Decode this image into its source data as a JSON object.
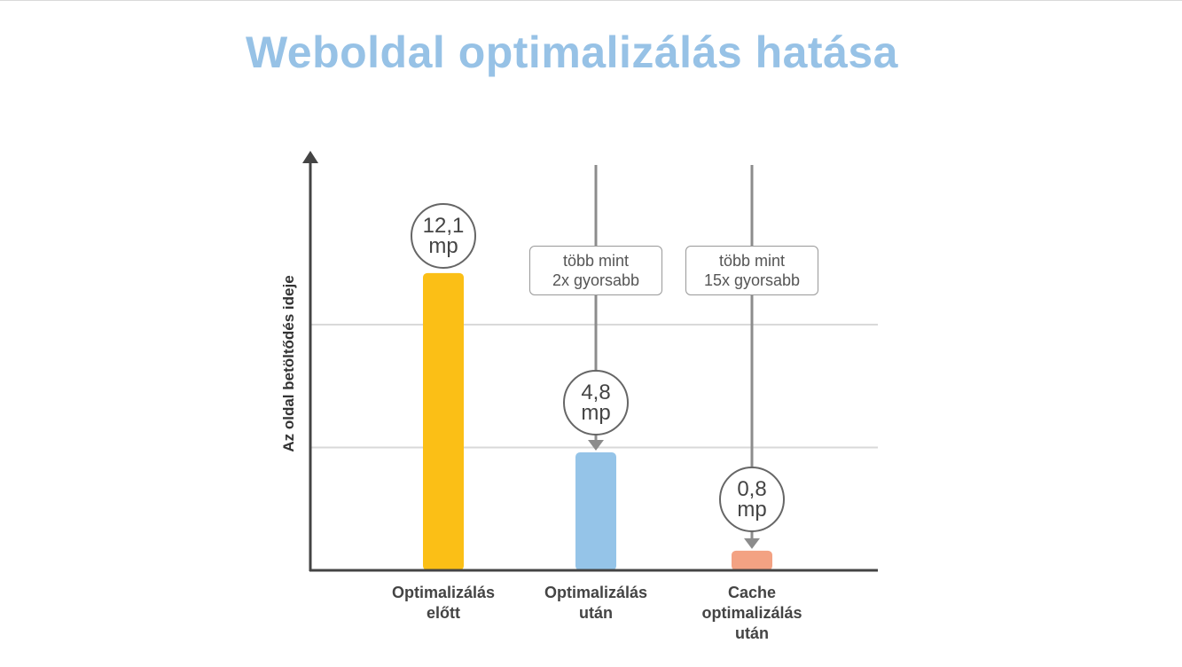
{
  "page": {
    "title": "Weboldal optimalizálás hatása",
    "title_color": "#97c2e6"
  },
  "chart_data": {
    "type": "bar",
    "title": "Weboldal optimalizálás hatása",
    "ylabel": "Az oldal betöltődés ideje",
    "xlabel": "",
    "unit": "mp",
    "categories": [
      "Optimalizálás\nelőtt",
      "Optimalizálás\nután",
      "Cache\noptimalizálás\nután"
    ],
    "values": [
      12.1,
      4.8,
      0.8
    ],
    "value_labels": [
      "12,1\nmp",
      "4,8\nmp",
      "0,8\nmp"
    ],
    "colors": [
      "#fbbf16",
      "#95c4e8",
      "#f3a283"
    ],
    "ylim": [
      0,
      15
    ],
    "gridlines": [
      5,
      10
    ],
    "grid": true,
    "annotations": [
      {
        "category": 1,
        "text": "több mint\n2x gyorsabb"
      },
      {
        "category": 2,
        "text": "több mint\n15x gyorsabb"
      }
    ],
    "axis_color": "#444444",
    "grid_color": "#d9d9d9",
    "pointer_color": "#8c8c8c"
  }
}
